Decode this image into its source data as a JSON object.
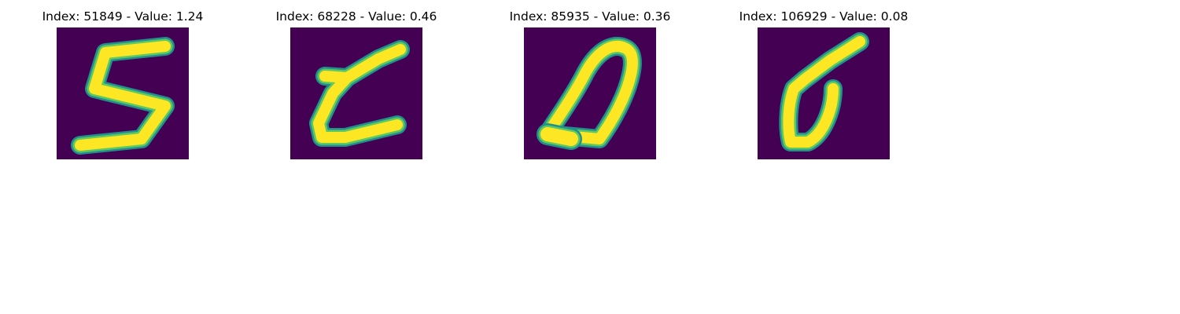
{
  "colors": {
    "background": "#440154",
    "stroke_core": "#fde725",
    "stroke_edge": "#21908d",
    "stroke_mid": "#5ec962"
  },
  "panels": [
    {
      "title": "Index: 51849 - Value: 1.24",
      "digit_shape": "handwritten-5"
    },
    {
      "title": "Index: 68228 - Value: 0.46",
      "digit_shape": "handwritten-3-mirrored"
    },
    {
      "title": "Index: 85935 - Value: 0.36",
      "digit_shape": "handwritten-0"
    },
    {
      "title": "Index: 106929 - Value: 0.08",
      "digit_shape": "handwritten-6"
    }
  ]
}
